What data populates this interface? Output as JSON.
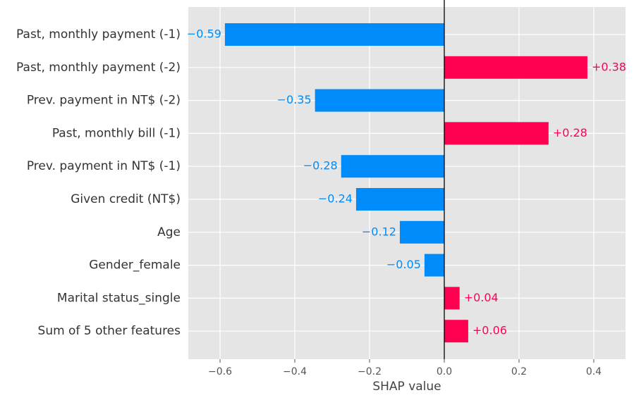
{
  "chart_data": {
    "type": "bar",
    "orientation": "horizontal",
    "xlabel": "SHAP value",
    "categories": [
      "Past, monthly payment (-1)",
      "Past, monthly payment (-2)",
      "Prev. payment in NT$ (-2)",
      "Past, monthly bill (-1)",
      "Prev. payment in NT$ (-1)",
      "Given credit (NT$)",
      "Age",
      "Gender_female",
      "Marital status_single",
      "Sum of 5 other features"
    ],
    "values": [
      -0.587,
      0.383,
      -0.346,
      0.279,
      -0.276,
      -0.236,
      -0.119,
      -0.053,
      0.041,
      0.064
    ],
    "value_labels": [
      "−0.59",
      "+0.38",
      "−0.35",
      "+0.28",
      "−0.28",
      "−0.24",
      "−0.12",
      "−0.05",
      "+0.04",
      "+0.06"
    ],
    "positive_color": "#ff0051",
    "negative_color": "#008bfb",
    "xlim": [
      -0.685,
      0.485
    ],
    "xticks": [
      {
        "value": -0.6,
        "label": "−0.6"
      },
      {
        "value": -0.4,
        "label": "−0.4"
      },
      {
        "value": -0.2,
        "label": "−0.2"
      },
      {
        "value": 0,
        "label": "0.0"
      },
      0.2,
      0.4
    ],
    "grid": true
  }
}
